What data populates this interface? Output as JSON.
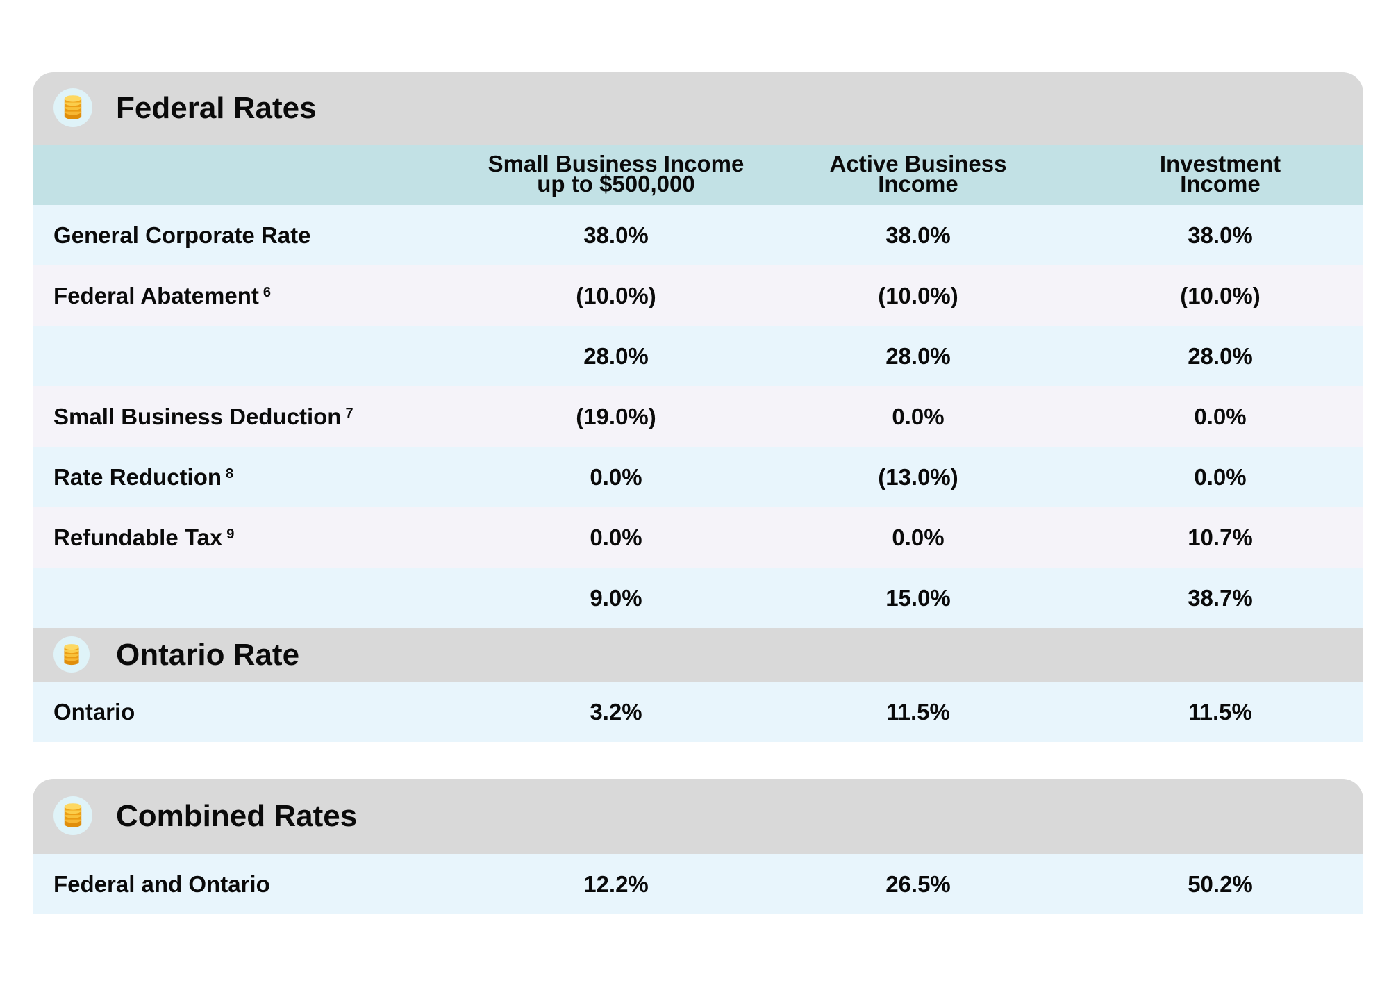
{
  "columns": [
    "Small Business Income",
    "up to $500,000",
    "Active Business",
    "Income",
    "Investment",
    "Income"
  ],
  "federal": {
    "title": "Federal Rates",
    "rows": [
      {
        "label": "General Corporate Rate",
        "note": "",
        "values": [
          "38.0%",
          "38.0%",
          "38.0%"
        ]
      },
      {
        "label": "Federal Abatement",
        "note": "6",
        "values": [
          "(10.0%)",
          "(10.0%)",
          "(10.0%)"
        ]
      },
      {
        "label": "",
        "note": "",
        "values": [
          "28.0%",
          "28.0%",
          "28.0%"
        ]
      },
      {
        "label": "Small Business Deduction",
        "note": "7",
        "values": [
          "(19.0%)",
          "0.0%",
          "0.0%"
        ]
      },
      {
        "label": "Rate Reduction",
        "note": "8",
        "values": [
          "0.0%",
          "(13.0%)",
          "0.0%"
        ]
      },
      {
        "label": "Refundable Tax",
        "note": "9",
        "values": [
          "0.0%",
          "0.0%",
          "10.7%"
        ]
      },
      {
        "label": "",
        "note": "",
        "values": [
          "9.0%",
          "15.0%",
          "38.7%"
        ]
      }
    ]
  },
  "ontario": {
    "title": "Ontario Rate",
    "rows": [
      {
        "label": "Ontario",
        "note": "",
        "values": [
          "3.2%",
          "11.5%",
          "11.5%"
        ]
      }
    ]
  },
  "combined": {
    "title": "Combined Rates",
    "rows": [
      {
        "label": "Federal and Ontario",
        "note": "",
        "values": [
          "12.2%",
          "26.5%",
          "50.2%"
        ]
      }
    ]
  },
  "icon": "coin-stack-icon",
  "colors": {
    "header": "#d9d9d9",
    "column_header": "#c2e1e5",
    "row_light_blue": "#e8f5fc",
    "row_lavender": "#f5f3f9",
    "coin": "#f5a623"
  }
}
